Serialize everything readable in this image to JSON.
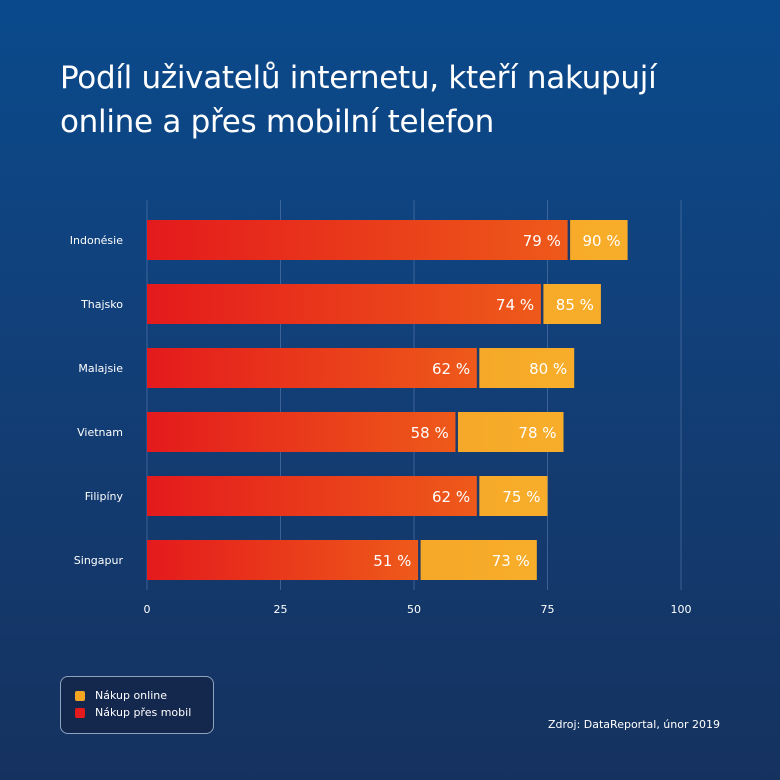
{
  "title_lines": [
    "Podíl uživatelů internetu, kteří nakupují",
    "online a přes mobilní telefon"
  ],
  "legend": {
    "online_label": "Nákup online",
    "mobile_label": "Nákup přes mobil"
  },
  "source": "Zdroj: DataReportal, únor 2019",
  "colors": {
    "online": "#f6a623",
    "mobile_start": "#e41a1c",
    "mobile_end": "#ee5a1a",
    "grid": "#5a7bab"
  },
  "chart_data": {
    "type": "bar",
    "orientation": "horizontal",
    "categories": [
      "Indonésie",
      "Thajsko",
      "Malajsie",
      "Vietnam",
      "Filipíny",
      "Singapur"
    ],
    "series": [
      {
        "name": "Nákup online",
        "values": [
          90,
          85,
          80,
          78,
          75,
          73
        ]
      },
      {
        "name": "Nákup přes mobil",
        "values": [
          79,
          74,
          62,
          58,
          62,
          51
        ]
      }
    ],
    "value_suffix": " %",
    "xlim": [
      0,
      100
    ],
    "xticks": [
      0,
      25,
      50,
      75,
      100
    ],
    "grid": true,
    "legend_position": "bottom-left"
  }
}
